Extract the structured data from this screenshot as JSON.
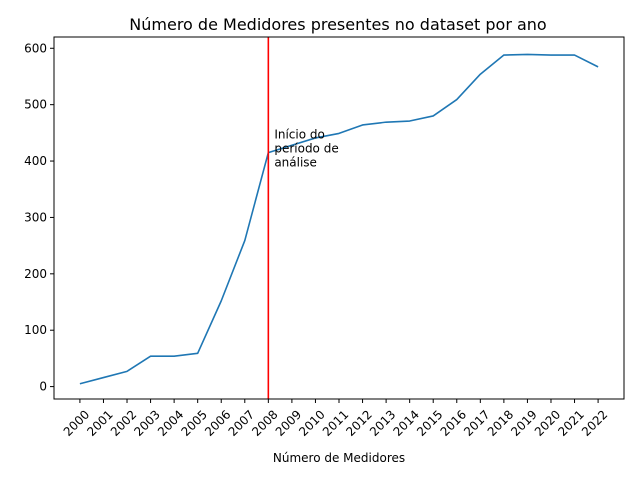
{
  "chart_data": {
    "type": "line",
    "title": "Número de Medidores presentes no dataset por ano",
    "xlabel": "Número de Medidores",
    "ylabel": "",
    "x": [
      2000,
      2001,
      2002,
      2003,
      2004,
      2005,
      2006,
      2007,
      2008,
      2009,
      2010,
      2011,
      2012,
      2013,
      2014,
      2015,
      2016,
      2017,
      2018,
      2019,
      2020,
      2021,
      2022
    ],
    "x_tick_labels": [
      "2000",
      "2001",
      "2002",
      "2003",
      "2004",
      "2005",
      "2006",
      "2007",
      "2008",
      "2009",
      "2010",
      "2011",
      "2012",
      "2013",
      "2014",
      "2015",
      "2016",
      "2017",
      "2018",
      "2019",
      "2020",
      "2021",
      "2022"
    ],
    "y_ticks": [
      0,
      100,
      200,
      300,
      400,
      500,
      600
    ],
    "y_tick_labels": [
      "0",
      "100",
      "200",
      "300",
      "400",
      "500",
      "600"
    ],
    "ylim": [
      -22,
      620
    ],
    "series": [
      {
        "color": "#1f77b4",
        "values": [
          5,
          16,
          27,
          54,
          54,
          59,
          152,
          259,
          415,
          428,
          441,
          449,
          464,
          469,
          471,
          480,
          509,
          554,
          588,
          589,
          588,
          588,
          567
        ]
      }
    ],
    "vline": {
      "x": 2008,
      "color": "#ff0000"
    },
    "annotation": {
      "x": 2008,
      "y": 392,
      "lines": [
        "Início do",
        "período de",
        "análise"
      ]
    },
    "grid": false,
    "legend": "none"
  }
}
